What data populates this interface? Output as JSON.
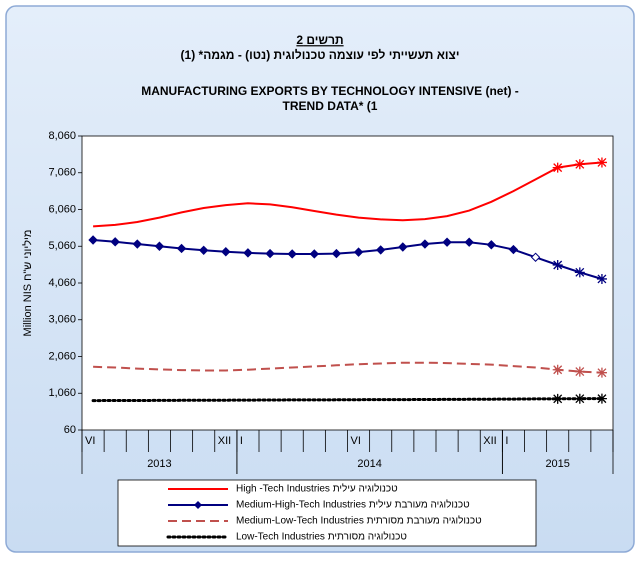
{
  "chart_data": {
    "type": "line",
    "title": "תרשים 2",
    "subtitle": "יצוא תעשייתי לפי עוצמה טכנולוגית (נטו) - מגמה* (1)",
    "title_en": [
      "MANUFACTURING  EXPORTS BY TECHNOLOGY INTENSIVE (net) -",
      "TREND DATA* (1"
    ],
    "y_label": "Million NIS מיליוני ש\"ח",
    "categories": [
      "VI",
      null,
      null,
      null,
      null,
      null,
      "XII",
      "I",
      null,
      null,
      null,
      null,
      "VI",
      null,
      null,
      null,
      null,
      null,
      "XII",
      "I",
      null,
      null,
      null,
      null
    ],
    "x_groups": [
      {
        "label": "2013",
        "categories": 7
      },
      {
        "label": "2014",
        "categories": 12
      },
      {
        "label": "2015",
        "categories": 5
      }
    ],
    "ylim": [
      60,
      8060
    ],
    "yticks": [
      60,
      {
        "value": 1060,
        "label": "1,060"
      },
      {
        "value": 2060,
        "label": "2,060"
      },
      {
        "value": 3060,
        "label": "3,060"
      },
      {
        "value": 4060,
        "label": "4,060"
      },
      {
        "value": 5060,
        "label": "5,060"
      },
      {
        "value": 6060,
        "label": "6,060"
      },
      {
        "value": 7060,
        "label": "7,060"
      },
      {
        "value": 8060,
        "label": "8,060"
      }
    ],
    "projection_points": 3,
    "series": [
      {
        "name": "High -Tech Industries  טכנולוגיה עילית",
        "color": "#ff0000",
        "dash": "solid",
        "values": [
          5600,
          5640,
          5720,
          5840,
          5980,
          6100,
          6180,
          6230,
          6200,
          6120,
          6020,
          5920,
          5840,
          5790,
          5770,
          5800,
          5880,
          6030,
          6270,
          6560,
          6880,
          7200,
          7290,
          7340
        ]
      },
      {
        "name": "Medium-High-Tech Industries  טכנולוגיה מעורבת עילית",
        "color": "#000080",
        "dash": "solid",
        "marker": "diamond",
        "values": [
          5230,
          5180,
          5120,
          5060,
          5000,
          4950,
          4910,
          4880,
          4860,
          4850,
          4850,
          4860,
          4900,
          4960,
          5040,
          5120,
          5170,
          5170,
          5100,
          4970,
          4760,
          4550,
          4350,
          4170
        ]
      },
      {
        "name": "Medium-Low-Tech Industries  טכנולוגיה מעורבת מסורתית",
        "color": "#c0504d",
        "dash": "dashed",
        "values": [
          1780,
          1760,
          1730,
          1710,
          1690,
          1680,
          1680,
          1700,
          1730,
          1760,
          1790,
          1820,
          1850,
          1870,
          1890,
          1890,
          1880,
          1860,
          1840,
          1800,
          1760,
          1700,
          1650,
          1620
        ]
      },
      {
        "name": "Low-Tech Industries  טכנולוגיה מסורתית",
        "color": "#000000",
        "dash": "dotted",
        "values": [
          860,
          862,
          864,
          866,
          868,
          870,
          872,
          874,
          876,
          878,
          880,
          882,
          884,
          886,
          888,
          890,
          893,
          896,
          899,
          902,
          905,
          908,
          911,
          914
        ]
      }
    ]
  }
}
